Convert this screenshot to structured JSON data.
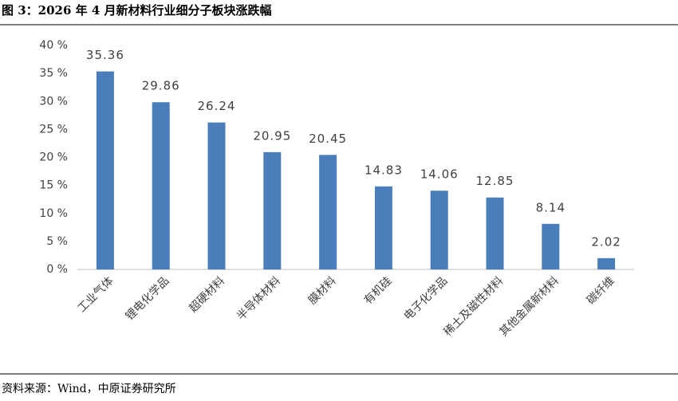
{
  "chart_data": {
    "type": "bar",
    "title": "图 3：2026 年 4 月新材料行业细分子板块涨跌幅",
    "categories": [
      "工业气体",
      "锂电化学品",
      "超硬材料",
      "半导体材料",
      "膜材料",
      "有机硅",
      "电子化学品",
      "稀土及磁性材料",
      "其他金属新材料",
      "碳纤维"
    ],
    "values": [
      35.36,
      29.86,
      26.24,
      20.95,
      20.45,
      14.83,
      14.06,
      12.85,
      8.14,
      2.02
    ],
    "color": "#4a7ebb",
    "ylim": [
      0,
      40
    ],
    "yticks": [
      {
        "value": 0,
        "label": "0 %"
      },
      {
        "value": 5,
        "label": "5 %"
      },
      {
        "value": 10,
        "label": "10 %"
      },
      {
        "value": 15,
        "label": "15 %"
      },
      {
        "value": 20,
        "label": "20 %"
      },
      {
        "value": 25,
        "label": "25 %"
      },
      {
        "value": 30,
        "label": "30 %"
      },
      {
        "value": 35,
        "label": "35 %"
      },
      {
        "value": 40,
        "label": "40 %"
      }
    ],
    "grid": false,
    "source": "资料来源：Wind，中原证券研究所"
  }
}
